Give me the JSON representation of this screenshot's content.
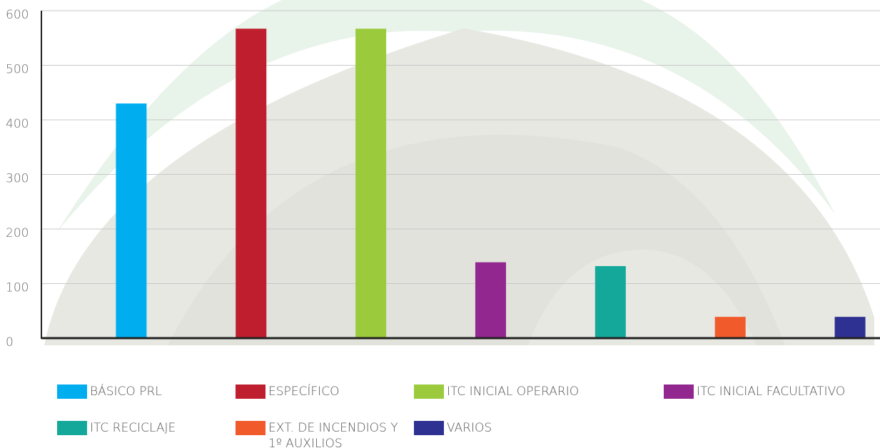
{
  "chart_data": {
    "type": "bar",
    "categories": [
      null
    ],
    "series": [
      {
        "name": "BÁSICO PRL",
        "color": "#00aeef",
        "values": [
          430
        ]
      },
      {
        "name": "ESPECÍFICO",
        "color": "#be1e2d",
        "values": [
          567
        ]
      },
      {
        "name": "ITC INICIAL OPERARIO",
        "color": "#9bcb3c",
        "values": [
          567
        ]
      },
      {
        "name": "ITC INICIAL FACULTATIVO",
        "color": "#92278f",
        "values": [
          139
        ]
      },
      {
        "name": "ITC RECICLAJE",
        "color": "#14a89a",
        "values": [
          132
        ]
      },
      {
        "name": "EXT. DE INCENDIOS Y 1º AUXILIOS",
        "color": "#f15a2b",
        "values": [
          39
        ]
      },
      {
        "name": "VARIOS",
        "color": "#2e3192",
        "values": [
          39
        ]
      }
    ],
    "ylim": [
      0,
      600
    ],
    "yticks": [
      0,
      100,
      200,
      300,
      400,
      500,
      600
    ],
    "grid": true
  }
}
